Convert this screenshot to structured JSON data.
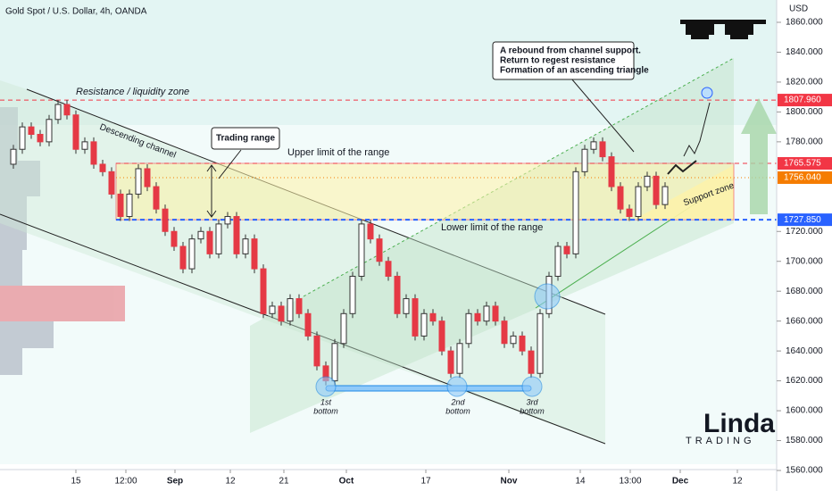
{
  "chart_data": {
    "type": "candlestick",
    "title": "Gold Spot / U.S. Dollar, 4h, OANDA",
    "y_axis_label": "USD",
    "colors": {
      "up": "#ffffff",
      "down": "#e53945"
    },
    "values": [
      1765,
      1775,
      1790,
      1785,
      1780,
      1795,
      1805,
      1798,
      1775,
      1780,
      1765,
      1760,
      1745,
      1730,
      1745,
      1762,
      1750,
      1735,
      1720,
      1710,
      1695,
      1715,
      1720,
      1705,
      1725,
      1730,
      1705,
      1715,
      1695,
      1665,
      1670,
      1660,
      1675,
      1665,
      1650,
      1630,
      1620,
      1645,
      1665,
      1690,
      1725,
      1715,
      1700,
      1690,
      1665,
      1675,
      1650,
      1665,
      1660,
      1640,
      1625,
      1645,
      1665,
      1660,
      1670,
      1660,
      1645,
      1650,
      1640,
      1625,
      1665,
      1690,
      1710,
      1705,
      1760,
      1775,
      1780,
      1770,
      1750,
      1735,
      1730,
      1750,
      1757,
      1738,
      1750
    ],
    "xlim": [
      -0.5,
      86.5
    ],
    "xticks": [
      {
        "value": 8,
        "label": "15"
      },
      {
        "value": 13.6,
        "label": "12:00"
      },
      {
        "value": 19.1,
        "label": "Sep"
      },
      {
        "value": 25.3,
        "label": "12"
      },
      {
        "value": 31.3,
        "label": "21"
      },
      {
        "value": 38.3,
        "label": "Oct"
      },
      {
        "value": 47.2,
        "label": "17"
      },
      {
        "value": 56.5,
        "label": "Nov"
      },
      {
        "value": 64.5,
        "label": "14"
      },
      {
        "value": 70.1,
        "label": "13:00"
      },
      {
        "value": 75.7,
        "label": "Dec"
      },
      {
        "value": 82.1,
        "label": "12"
      }
    ],
    "ylim": [
      1560,
      1860
    ],
    "yticks": [
      {
        "value": 1560,
        "label": "1560.000"
      },
      {
        "value": 1580,
        "label": "1580.000"
      },
      {
        "value": 1600,
        "label": "1600.000"
      },
      {
        "value": 1620,
        "label": "1620.000"
      },
      {
        "value": 1640,
        "label": "1640.000"
      },
      {
        "value": 1660,
        "label": "1660.000"
      },
      {
        "value": 1680,
        "label": "1680.000"
      },
      {
        "value": 1700,
        "label": "1700.000"
      },
      {
        "value": 1720,
        "label": "1720.000"
      },
      {
        "value": 1780,
        "label": "1780.000"
      },
      {
        "value": 1800,
        "label": "1800.000"
      },
      {
        "value": 1820,
        "label": "1820.000"
      },
      {
        "value": 1840,
        "label": "1840.000"
      },
      {
        "value": 1860,
        "label": "1860.000"
      }
    ],
    "levels": [
      {
        "value": 1807.96,
        "label": "1807.960",
        "color": "#f23645"
      },
      {
        "value": 1765.575,
        "label": "1765.575",
        "color": "#f23645"
      },
      {
        "value": 1756.04,
        "label": "1756.040",
        "color": "#f57c00"
      },
      {
        "value": 1727.85,
        "label": "1727.850",
        "color": "#2962ff"
      }
    ],
    "annotations": {
      "resistance": "Resistance / liquidity zone",
      "channel": "Descending channel",
      "range": "Trading range",
      "upper": "Upper limit of the range",
      "lower": "Lower limit of the range",
      "rebound": [
        "A rebound from channel support.",
        "Return to regest resistance",
        "Formation of an ascending triangle"
      ],
      "support": "Support zone",
      "bottoms": [
        [
          "1st",
          "bottom"
        ],
        [
          "2nd",
          "bottom"
        ],
        [
          "3rd",
          "bottom"
        ]
      ]
    },
    "logo": {
      "name": "Linda",
      "sub": "TRADING"
    }
  }
}
